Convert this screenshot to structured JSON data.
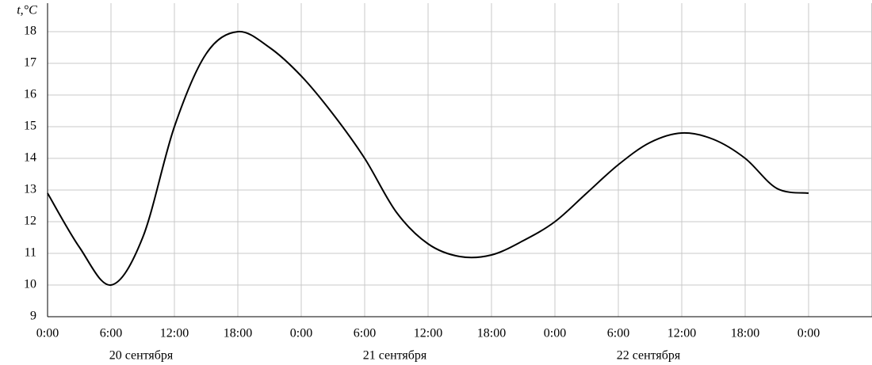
{
  "chart_data": {
    "type": "line",
    "y_label": "t,°C",
    "x": [
      0,
      3,
      6,
      9,
      12,
      15,
      18,
      21,
      24,
      27,
      30,
      33,
      36,
      39,
      42,
      45,
      48,
      51,
      54,
      57,
      60,
      63,
      66,
      69,
      72
    ],
    "series": [
      {
        "color": "#000000",
        "values": [
          12.9,
          11.2,
          10,
          11.5,
          15,
          17.3,
          18,
          17.5,
          16.6,
          15.4,
          14,
          12.3,
          11.3,
          10.9,
          10.95,
          11.4,
          12,
          12.9,
          13.8,
          14.5,
          14.8,
          14.6,
          14,
          13.05,
          12.9
        ]
      }
    ],
    "xlim": [
      0,
      78
    ],
    "ylim": [
      9,
      18.9
    ],
    "xticks": [
      {
        "value": 0,
        "label": "0:00"
      },
      {
        "value": 6,
        "label": "6:00"
      },
      {
        "value": 12,
        "label": "12:00"
      },
      {
        "value": 18,
        "label": "18:00"
      },
      {
        "value": 24,
        "label": "0:00"
      },
      {
        "value": 30,
        "label": "6:00"
      },
      {
        "value": 36,
        "label": "12:00"
      },
      {
        "value": 42,
        "label": "18:00"
      },
      {
        "value": 48,
        "label": "0:00"
      },
      {
        "value": 54,
        "label": "6:00"
      },
      {
        "value": 60,
        "label": "12:00"
      },
      {
        "value": 66,
        "label": "18:00"
      },
      {
        "value": 72,
        "label": "0:00"
      }
    ],
    "yticks": [
      9,
      10,
      11,
      12,
      13,
      14,
      15,
      16,
      17,
      18
    ],
    "date_labels": [
      "20 сентября",
      "21 сентября",
      "22 сентября"
    ],
    "grid": true
  }
}
